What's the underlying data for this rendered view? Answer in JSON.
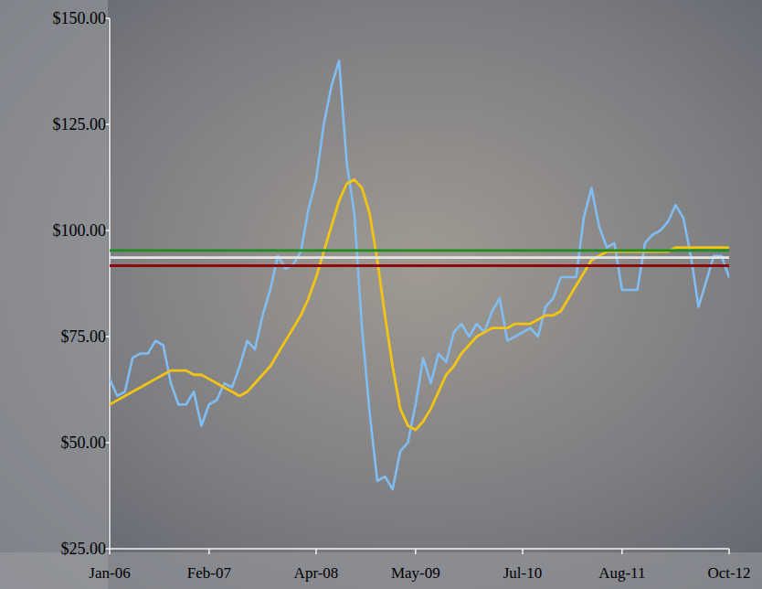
{
  "chart_data": {
    "type": "line",
    "x": [
      "2006-01",
      "2006-02",
      "2006-03",
      "2006-04",
      "2006-05",
      "2006-06",
      "2006-07",
      "2006-08",
      "2006-09",
      "2006-10",
      "2006-11",
      "2006-12",
      "2007-01",
      "2007-02",
      "2007-03",
      "2007-04",
      "2007-05",
      "2007-06",
      "2007-07",
      "2007-08",
      "2007-09",
      "2007-10",
      "2007-11",
      "2007-12",
      "2008-01",
      "2008-02",
      "2008-03",
      "2008-04",
      "2008-05",
      "2008-06",
      "2008-07",
      "2008-08",
      "2008-09",
      "2008-10",
      "2008-11",
      "2008-12",
      "2009-01",
      "2009-02",
      "2009-03",
      "2009-04",
      "2009-05",
      "2009-06",
      "2009-07",
      "2009-08",
      "2009-09",
      "2009-10",
      "2009-11",
      "2009-12",
      "2010-01",
      "2010-02",
      "2010-03",
      "2010-04",
      "2010-05",
      "2010-06",
      "2010-07",
      "2010-08",
      "2010-09",
      "2010-10",
      "2010-11",
      "2010-12",
      "2011-01",
      "2011-02",
      "2011-03",
      "2011-04",
      "2011-05",
      "2011-06",
      "2011-07",
      "2011-08",
      "2011-09",
      "2011-10",
      "2011-11",
      "2011-12",
      "2012-01",
      "2012-02",
      "2012-03",
      "2012-04",
      "2012-05",
      "2012-06",
      "2012-07",
      "2012-08",
      "2012-09",
      "2012-10"
    ],
    "series": [
      {
        "color": "#80bdf2",
        "values": [
          65,
          61,
          62,
          70,
          71,
          71,
          74,
          73,
          64,
          59,
          59,
          62,
          54,
          59,
          60,
          64,
          63,
          68,
          74,
          72,
          80,
          86,
          94,
          91,
          92,
          95,
          105,
          112,
          125,
          134,
          140,
          116,
          104,
          77,
          57,
          41,
          42,
          39,
          48,
          50,
          59,
          70,
          64,
          71,
          69,
          76,
          78,
          75,
          78,
          76,
          81,
          84,
          74,
          75,
          76,
          77,
          75,
          82,
          84,
          89,
          89,
          89,
          103,
          110,
          101,
          96,
          97,
          86,
          86,
          86,
          97,
          99,
          100,
          102,
          106,
          103,
          94,
          82,
          88,
          94,
          94,
          89
        ]
      },
      {
        "color": "#f2c414",
        "values": [
          59,
          60,
          61,
          62,
          63,
          64,
          65,
          66,
          67,
          67,
          67,
          66,
          66,
          65,
          64,
          63,
          62,
          61,
          62,
          64,
          66,
          68,
          71,
          74,
          77,
          80,
          84,
          89,
          95,
          101,
          107,
          111,
          112,
          110,
          104,
          93,
          80,
          68,
          58,
          54,
          53,
          55,
          58,
          62,
          66,
          68,
          71,
          73,
          75,
          76,
          77,
          77,
          77,
          78,
          78,
          78,
          79,
          80,
          80,
          81,
          84,
          87,
          90,
          93,
          94,
          95,
          95,
          95,
          95,
          95,
          95,
          95,
          95,
          95,
          96,
          96,
          96,
          96,
          96,
          96,
          96,
          96
        ]
      },
      {
        "color": "#1e8c1e",
        "values": [
          95.3,
          95.3,
          95.3,
          95.3,
          95.3,
          95.3,
          95.3,
          95.3,
          95.3,
          95.3,
          95.3,
          95.3,
          95.3,
          95.3,
          95.3,
          95.3,
          95.3,
          95.3,
          95.3,
          95.3,
          95.3,
          95.3,
          95.3,
          95.3,
          95.3,
          95.3,
          95.3,
          95.3,
          95.3,
          95.3,
          95.3,
          95.3,
          95.3,
          95.3,
          95.3,
          95.3,
          95.3,
          95.3,
          95.3,
          95.3,
          95.3,
          95.3,
          95.3,
          95.3,
          95.3,
          95.3,
          95.3,
          95.3,
          95.3,
          95.3,
          95.3,
          95.3,
          95.3,
          95.3,
          95.3,
          95.3,
          95.3,
          95.3,
          95.3,
          95.3,
          95.3,
          95.3,
          95.3,
          95.3,
          95.3,
          95.3,
          95.3,
          95.3,
          95.3,
          95.3,
          95.3,
          95.3,
          95.3,
          95.3,
          95.3,
          95.3,
          95.3,
          95.3,
          95.3,
          95.3,
          95.3,
          95.3
        ]
      },
      {
        "color": "#e6e6e6",
        "values": [
          93.6,
          93.6,
          93.6,
          93.6,
          93.6,
          93.6,
          93.6,
          93.6,
          93.6,
          93.6,
          93.6,
          93.6,
          93.6,
          93.6,
          93.6,
          93.6,
          93.6,
          93.6,
          93.6,
          93.6,
          93.6,
          93.6,
          93.6,
          93.6,
          93.6,
          93.6,
          93.6,
          93.6,
          93.6,
          93.6,
          93.6,
          93.6,
          93.6,
          93.6,
          93.6,
          93.6,
          93.6,
          93.6,
          93.6,
          93.6,
          93.6,
          93.6,
          93.6,
          93.6,
          93.6,
          93.6,
          93.6,
          93.6,
          93.6,
          93.6,
          93.6,
          93.6,
          93.6,
          93.6,
          93.6,
          93.6,
          93.6,
          93.6,
          93.6,
          93.6,
          93.6,
          93.6,
          93.6,
          93.6,
          93.6,
          93.6,
          93.6,
          93.6,
          93.6,
          93.6,
          93.6,
          93.6,
          93.6,
          93.6,
          93.6,
          93.6,
          93.6,
          93.6,
          93.6,
          93.6,
          93.6,
          93.6
        ]
      },
      {
        "color": "#8b0a0a",
        "values": [
          91.7,
          91.7,
          91.7,
          91.7,
          91.7,
          91.7,
          91.7,
          91.7,
          91.7,
          91.7,
          91.7,
          91.7,
          91.7,
          91.7,
          91.7,
          91.7,
          91.7,
          91.7,
          91.7,
          91.7,
          91.7,
          91.7,
          91.7,
          91.7,
          91.7,
          91.7,
          91.7,
          91.7,
          91.7,
          91.7,
          91.7,
          91.7,
          91.7,
          91.7,
          91.7,
          91.7,
          91.7,
          91.7,
          91.7,
          91.7,
          91.7,
          91.7,
          91.7,
          91.7,
          91.7,
          91.7,
          91.7,
          91.7,
          91.7,
          91.7,
          91.7,
          91.7,
          91.7,
          91.7,
          91.7,
          91.7,
          91.7,
          91.7,
          91.7,
          91.7,
          91.7,
          91.7,
          91.7,
          91.7,
          91.7,
          91.7,
          91.7,
          91.7,
          91.7,
          91.7,
          91.7,
          91.7,
          91.7,
          91.7,
          91.7,
          91.7,
          91.7,
          91.7,
          91.7,
          91.7,
          91.7,
          91.7
        ]
      }
    ],
    "xlim": [
      "2006-01",
      "2012-10"
    ],
    "xticks": [
      {
        "value": "2006-01",
        "label": "Jan-06"
      },
      {
        "value": "2007-02",
        "label": "Feb-07"
      },
      {
        "value": "2008-04",
        "label": "Apr-08"
      },
      {
        "value": "2009-05",
        "label": "May-09"
      },
      {
        "value": "2010-07",
        "label": "Jul-10"
      },
      {
        "value": "2011-08",
        "label": "Aug-11"
      },
      {
        "value": "2012-10",
        "label": "Oct-12"
      }
    ],
    "ylim": [
      25,
      150
    ],
    "yticks": [
      {
        "value": 25,
        "label": "$25.00"
      },
      {
        "value": 50,
        "label": "$50.00"
      },
      {
        "value": 75,
        "label": "$75.00"
      },
      {
        "value": 100,
        "label": "$100.00"
      },
      {
        "value": 125,
        "label": "$125.00"
      },
      {
        "value": 150,
        "label": "$150.00"
      }
    ],
    "grid": false
  }
}
